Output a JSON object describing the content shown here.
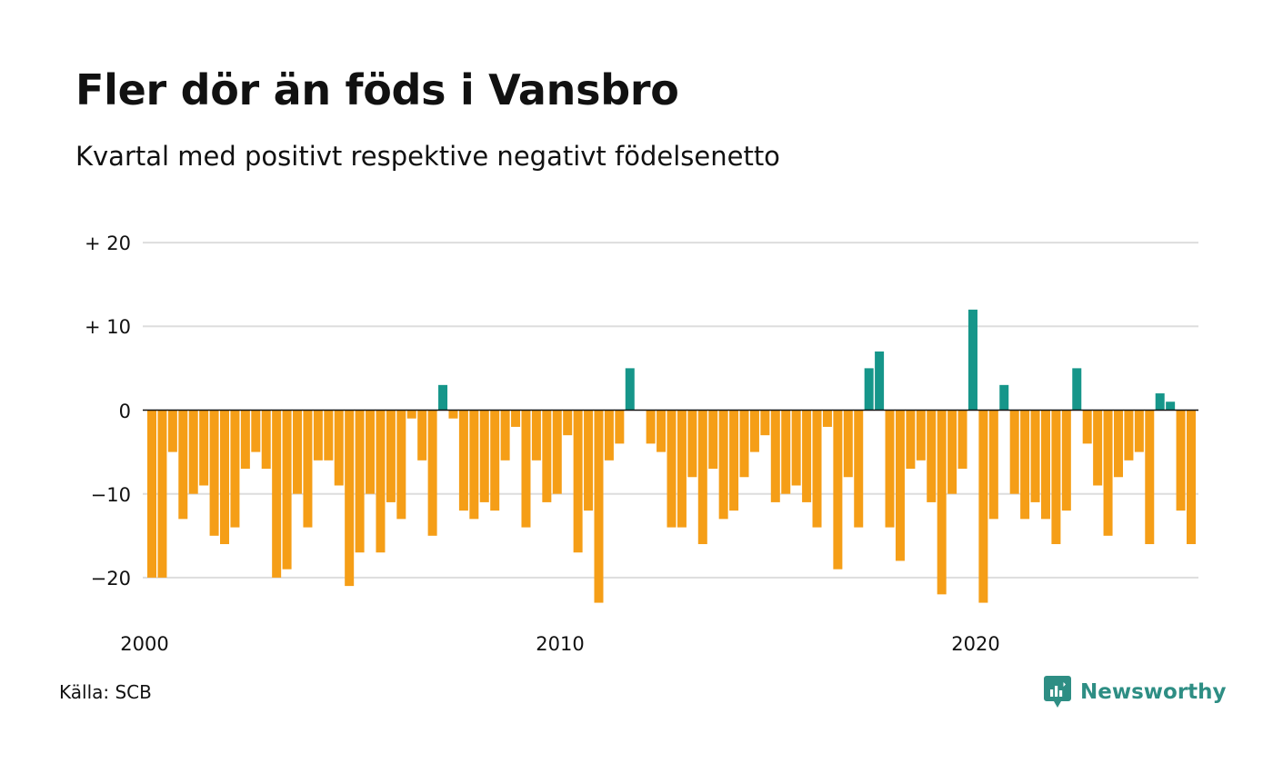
{
  "header": {
    "title": "Fler dör än föds i Vansbro",
    "subtitle": "Kvartal med positivt respektive negativt födelsenetto"
  },
  "footer": {
    "source": "Källa: SCB",
    "brand": "Newsworthy"
  },
  "colors": {
    "negative": "#F59E17",
    "positive": "#16968A",
    "gridline": "#DDDDDD",
    "zeroline": "#111111",
    "brand": "#2E8E84"
  },
  "chart_data": {
    "type": "bar",
    "title": "Fler dör än föds i Vansbro",
    "subtitle": "Kvartal med positivt respektive negativt födelsenetto",
    "xlabel": "",
    "ylabel": "",
    "x_start": "2000-Q1",
    "x_ticks": [
      "2000",
      "2010",
      "2020"
    ],
    "y_ticks": [
      "+ 20",
      "+ 10",
      "0",
      "−10",
      "−20"
    ],
    "y_tick_values": [
      20,
      10,
      0,
      -10,
      -20
    ],
    "ylim": [
      -25,
      20
    ],
    "grid": true,
    "legend": "none",
    "values": [
      -20,
      -20,
      -5,
      -13,
      -10,
      -9,
      -15,
      -16,
      -14,
      -7,
      -5,
      -7,
      -20,
      -19,
      -10,
      -14,
      -6,
      -6,
      -9,
      -21,
      -17,
      -10,
      -17,
      -11,
      -13,
      -1,
      -6,
      -15,
      3,
      -1,
      -12,
      -13,
      -11,
      -12,
      -6,
      -2,
      -14,
      -6,
      -11,
      -10,
      -3,
      -17,
      -12,
      -23,
      -6,
      -4,
      5,
      0,
      -4,
      -5,
      -14,
      -14,
      -8,
      -16,
      -7,
      -13,
      -12,
      -8,
      -5,
      -3,
      -11,
      -10,
      -9,
      -11,
      -14,
      -2,
      -19,
      -8,
      -14,
      5,
      7,
      -14,
      -18,
      -7,
      -6,
      -11,
      -22,
      -10,
      -7,
      12,
      -23,
      -13,
      3,
      -10,
      -13,
      -11,
      -13,
      -16,
      -12,
      5,
      -4,
      -9,
      -15,
      -8,
      -6,
      -5,
      -16,
      2,
      1,
      -12,
      -16
    ]
  }
}
